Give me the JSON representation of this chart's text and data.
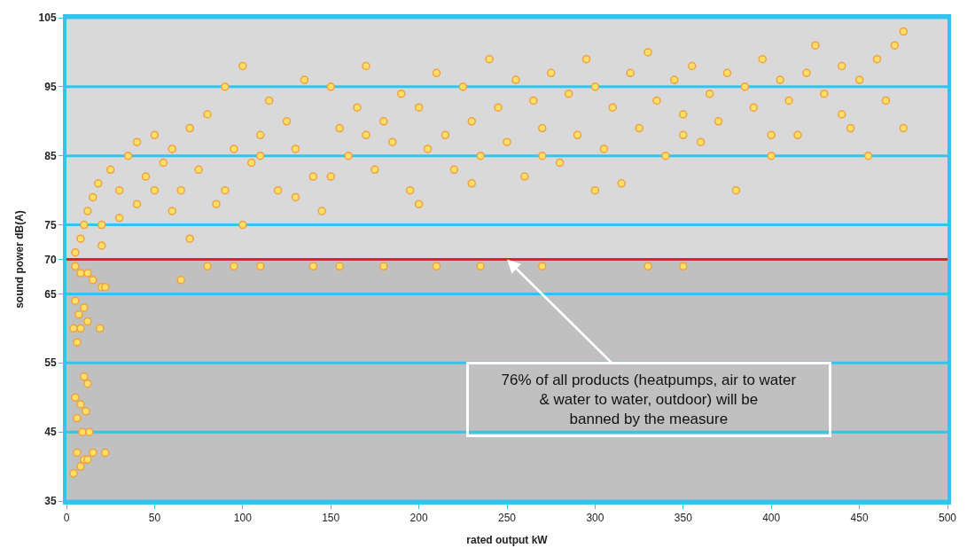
{
  "chart_data": {
    "type": "scatter",
    "xlabel": "rated output kW",
    "ylabel": "sound power dB(A)",
    "xlim": [
      0,
      500
    ],
    "xticks": [
      0,
      50,
      100,
      150,
      200,
      250,
      300,
      350,
      400,
      450,
      500
    ],
    "ylim": [
      35,
      105
    ],
    "yticks": [
      35,
      45,
      55,
      65,
      70,
      75,
      85,
      95,
      105
    ],
    "grid": "y",
    "marker": "circle",
    "series": [
      {
        "color": "#ffe066",
        "x": [
          5,
          8,
          12,
          15,
          20,
          22,
          5,
          10,
          7,
          12,
          4,
          8,
          19,
          6,
          10,
          12,
          5,
          8,
          11,
          6,
          9,
          13,
          6,
          10,
          15,
          22,
          8,
          4,
          12,
          65,
          80,
          95,
          110,
          140,
          155,
          180,
          210,
          235,
          270,
          330,
          350,
          5,
          8,
          10,
          12,
          15,
          18,
          20,
          25,
          30,
          35,
          40,
          45,
          50,
          55,
          60,
          65,
          70,
          75,
          80,
          85,
          90,
          95,
          100,
          105,
          110,
          115,
          120,
          125,
          130,
          135,
          140,
          145,
          150,
          155,
          160,
          165,
          170,
          175,
          180,
          185,
          190,
          195,
          200,
          205,
          210,
          215,
          220,
          225,
          230,
          235,
          240,
          245,
          250,
          255,
          260,
          265,
          270,
          275,
          280,
          285,
          290,
          295,
          300,
          305,
          310,
          315,
          320,
          325,
          330,
          335,
          340,
          345,
          350,
          355,
          360,
          365,
          370,
          375,
          380,
          385,
          390,
          395,
          400,
          405,
          410,
          415,
          420,
          425,
          430,
          440,
          445,
          450,
          455,
          460,
          465,
          470,
          475,
          475,
          20,
          30,
          40,
          50,
          60,
          70,
          90,
          100,
          110,
          130,
          150,
          170,
          200,
          230,
          270,
          300,
          350,
          400,
          440
        ],
        "values": [
          69,
          68,
          68,
          67,
          66,
          66,
          64,
          63,
          62,
          61,
          60,
          60,
          60,
          58,
          53,
          52,
          50,
          49,
          48,
          47,
          45,
          45,
          42,
          41,
          42,
          42,
          40,
          39,
          41,
          67,
          69,
          69,
          69,
          69,
          69,
          69,
          69,
          69,
          69,
          69,
          69,
          71,
          73,
          75,
          77,
          79,
          81,
          72,
          83,
          80,
          85,
          87,
          82,
          88,
          84,
          86,
          80,
          89,
          83,
          91,
          78,
          95,
          86,
          98,
          84,
          88,
          93,
          80,
          90,
          86,
          96,
          82,
          77,
          95,
          89,
          85,
          92,
          98,
          83,
          90,
          87,
          94,
          80,
          92,
          86,
          97,
          88,
          83,
          95,
          90,
          85,
          99,
          92,
          87,
          96,
          82,
          93,
          89,
          97,
          84,
          94,
          88,
          99,
          95,
          86,
          92,
          81,
          97,
          89,
          100,
          93,
          85,
          96,
          91,
          98,
          87,
          94,
          90,
          97,
          80,
          95,
          92,
          99,
          85,
          96,
          93,
          88,
          97,
          101,
          94,
          98,
          89,
          96,
          85,
          99,
          93,
          101,
          103,
          89,
          75,
          76,
          78,
          80,
          77,
          73,
          80,
          75,
          85,
          79,
          82,
          88,
          78,
          81,
          85,
          80,
          88,
          88,
          91
        ]
      }
    ],
    "bands": [
      {
        "axis": "y",
        "from": 35,
        "to": 70,
        "color": "#c0c0c0"
      },
      {
        "axis": "y",
        "from": 70,
        "to": 105,
        "color": "#d9d9d9"
      }
    ],
    "ref_lines": [
      {
        "axis": "y",
        "value": 70,
        "color": "#e8201c",
        "line_style": "solid"
      }
    ],
    "annotations": [
      {
        "text": "76% of all products (heatpumps, air to water\n& water to water, outdoor) will be\nbanned by the measure",
        "x": 250,
        "y": 70
      }
    ]
  }
}
